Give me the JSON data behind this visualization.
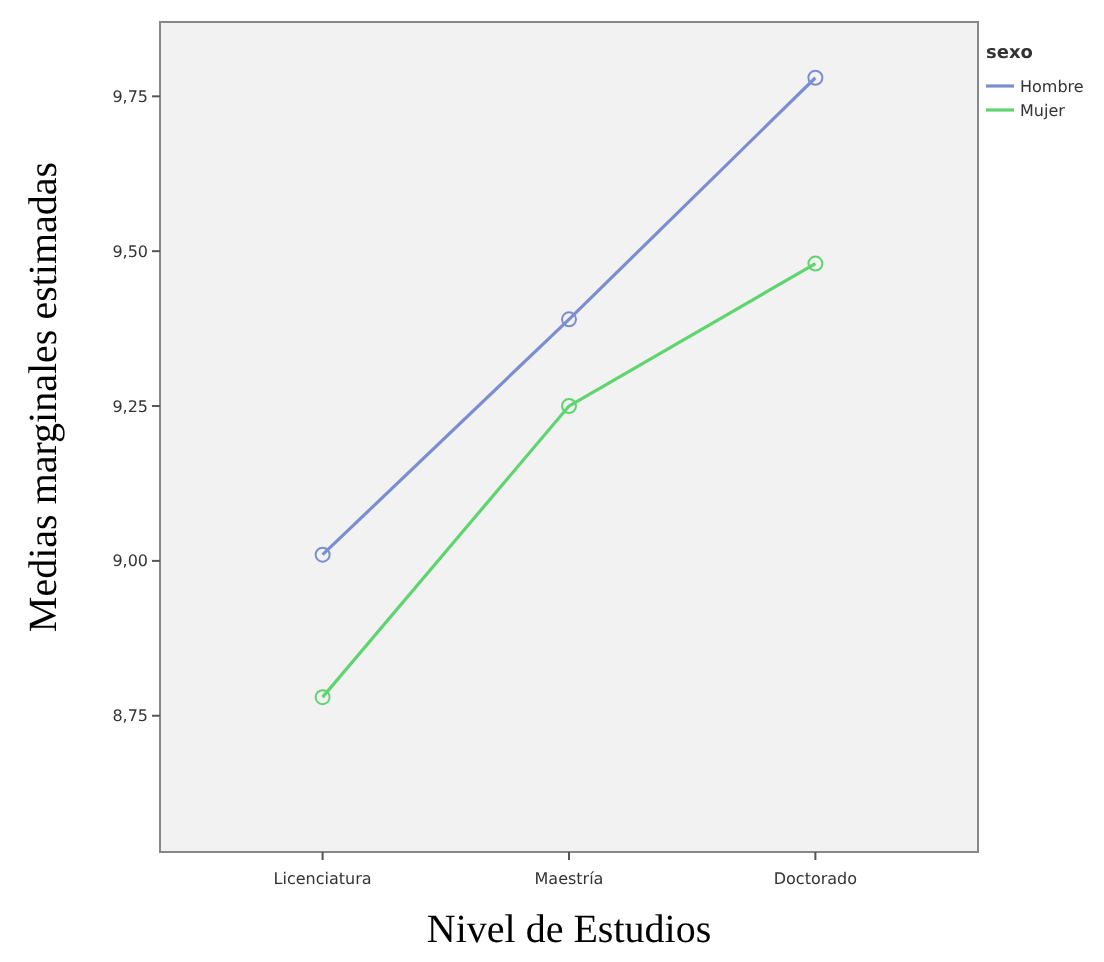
{
  "chart_data": {
    "type": "line",
    "xlabel": "Nivel de Estudios",
    "ylabel": "Medias marginales estimadas",
    "legend_title": "sexo",
    "legend": "top right",
    "marker": "circle",
    "grid": false,
    "categories": [
      "Licenciatura",
      "Maestría",
      "Doctorado"
    ],
    "ylim": [
      8.53,
      9.87
    ],
    "yticks": [
      {
        "value": 8.75,
        "label": "8,75"
      },
      {
        "value": 9,
        "label": "9,00"
      },
      {
        "value": 9.25,
        "label": "9,25"
      },
      {
        "value": 9.5,
        "label": "9,50"
      },
      {
        "value": 9.75,
        "label": "9,75"
      }
    ],
    "series": [
      {
        "name": "Hombre",
        "color": "#7b8fd0",
        "values": [
          9.01,
          9.39,
          9.78
        ]
      },
      {
        "name": "Mujer",
        "color": "#5fd46f",
        "values": [
          8.78,
          9.25,
          9.48
        ]
      }
    ]
  }
}
